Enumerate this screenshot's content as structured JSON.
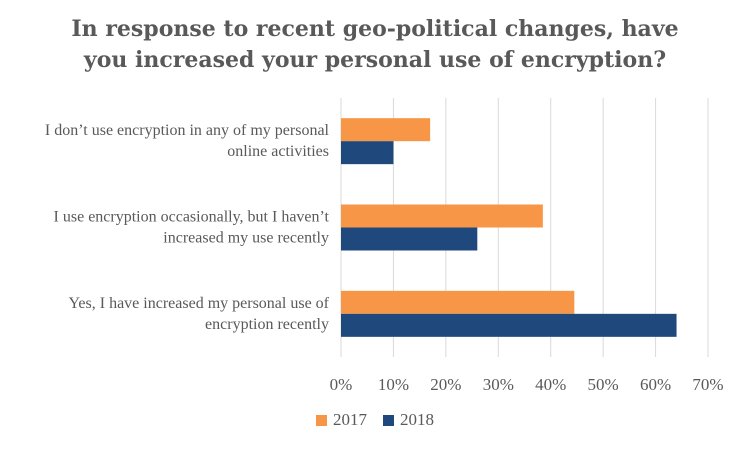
{
  "chart_data": {
    "type": "bar",
    "orientation": "horizontal",
    "title": [
      "In response to recent geo-political changes, have",
      "you increased your personal use of encryption?"
    ],
    "categories": [
      [
        "I don’t use encryption in any of my personal",
        "online activities"
      ],
      [
        "I use encryption occasionally, but I haven’t",
        "increased my use recently"
      ],
      [
        "Yes, I have increased my personal use of",
        "encryption recently"
      ]
    ],
    "series": [
      {
        "name": "2017",
        "color": "#F79646",
        "values": [
          17,
          38.5,
          44.5
        ]
      },
      {
        "name": "2018",
        "color": "#1F497D",
        "values": [
          10,
          26,
          64
        ]
      }
    ],
    "xlim": [
      0,
      70
    ],
    "xticks": [
      0,
      10,
      20,
      30,
      40,
      50,
      60,
      70
    ],
    "tick_suffix": "%",
    "grid": true,
    "legend_position": "bottom"
  }
}
